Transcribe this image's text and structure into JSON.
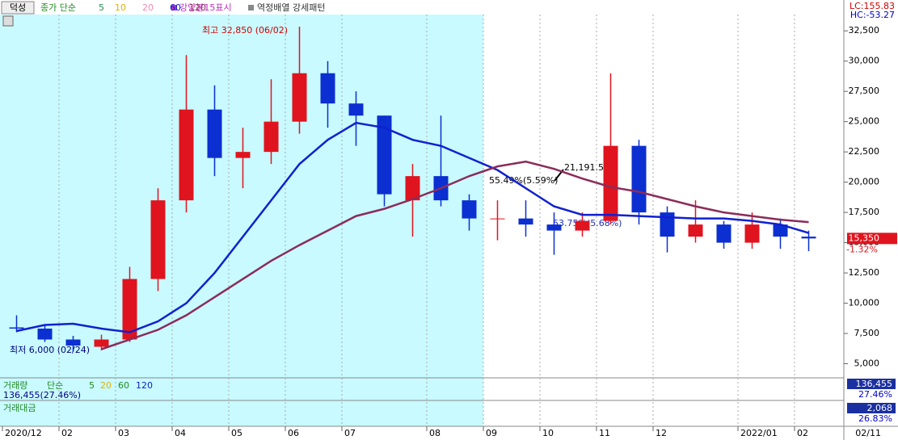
{
  "toolbar": {
    "stock": "덕성",
    "ma_prefix": "종가 단순",
    "ma_short": [
      {
        "label": "5",
        "color": "#2e8b57"
      },
      {
        "label": "10",
        "color": "#e0b000"
      },
      {
        "label": "20",
        "color": "#f08cb4"
      }
    ],
    "signal_1": "강양봉15표시",
    "signal_2": "역정배열 강세패턴",
    "lc": "LC:155.83",
    "hc": "HC:-53.27"
  },
  "chart_data": {
    "type": "candlestick",
    "categories": [
      "2020/12",
      null,
      "02",
      null,
      "03",
      null,
      "04",
      null,
      "05",
      null,
      "06",
      null,
      "07",
      null,
      null,
      "08",
      null,
      "09",
      null,
      "10",
      null,
      "11",
      null,
      "12",
      null,
      null,
      "2022/01",
      null,
      "02"
    ],
    "open": [
      8000,
      7900,
      7000,
      6400,
      7000,
      12000,
      18500,
      26000,
      22000,
      22500,
      25000,
      29000,
      26500,
      25500,
      18500,
      20500,
      18500,
      17000,
      17000,
      16500,
      16000,
      16800,
      23000,
      17500,
      15500,
      16500,
      15000,
      16500,
      15500
    ],
    "high": [
      9000,
      8200,
      7300,
      7400,
      13000,
      19500,
      30500,
      28000,
      24500,
      28500,
      32850,
      30000,
      27500,
      25500,
      21500,
      25500,
      19000,
      18500,
      18500,
      17500,
      17500,
      29000,
      23500,
      18000,
      18500,
      16800,
      17500,
      17000,
      16000
    ],
    "low": [
      7600,
      6800,
      6000,
      6100,
      6800,
      11000,
      17500,
      20500,
      19500,
      21500,
      24000,
      24500,
      23000,
      18000,
      15500,
      18000,
      16000,
      15200,
      15500,
      14000,
      15500,
      16500,
      16500,
      14200,
      15000,
      14500,
      14500,
      14500,
      14300
    ],
    "close": [
      7900,
      7000,
      6500,
      7000,
      12000,
      18500,
      26000,
      22000,
      22500,
      25000,
      29000,
      26500,
      25500,
      19000,
      20500,
      18500,
      17000,
      17000,
      16500,
      16000,
      16800,
      23000,
      17500,
      15500,
      16500,
      15000,
      16500,
      15500,
      15350
    ],
    "up_color": "#e0141e",
    "down_color": "#0b2fd0",
    "series": [
      {
        "name": "60",
        "color": "#1020d0",
        "values": [
          7700,
          8200,
          8300,
          7900,
          7600,
          8500,
          10000,
          12500,
          15500,
          18500,
          21500,
          23500,
          24900,
          24500,
          23500,
          23000,
          22000,
          21000,
          19500,
          18000,
          17300,
          17300,
          17200,
          17100,
          17000,
          17000,
          16800,
          16500,
          15800
        ]
      },
      {
        "name": "120",
        "color": "#8b2c5a",
        "values": [
          null,
          null,
          null,
          6200,
          7000,
          7800,
          9000,
          10500,
          12000,
          13500,
          14800,
          16000,
          17200,
          17800,
          18600,
          19500,
          20500,
          21300,
          21700,
          21100,
          20300,
          19600,
          19200,
          18600,
          18000,
          17500,
          17200,
          16900,
          16700
        ]
      }
    ],
    "ylim": [
      3900,
      33850
    ],
    "yticks": [
      {
        "value": 5000,
        "label": "5,000"
      },
      {
        "value": 7500,
        "label": "7,500"
      },
      {
        "value": 10000,
        "label": "10,000"
      },
      {
        "value": 12500,
        "label": "12,500"
      },
      {
        "value": 15000,
        "label": "15,000"
      },
      {
        "value": 17500,
        "label": "17,500"
      },
      {
        "value": 20000,
        "label": "20,000"
      },
      {
        "value": 22500,
        "label": "22,500"
      },
      {
        "value": 25000,
        "label": "25,000"
      },
      {
        "value": 27500,
        "label": "27,500"
      },
      {
        "value": 30000,
        "label": "30,000"
      },
      {
        "value": 32500,
        "label": "32,500"
      }
    ],
    "annotations": {
      "high": "최고 32,850 (06/02)",
      "low": "최저 6,000 (02/24)",
      "ret_1": "55.49%(5.59%)",
      "level": "21,191.50",
      "ret_2": "53.75%(5.68%)"
    },
    "last_price": {
      "value": 15350,
      "label": "15,350",
      "change": "-1.32%"
    },
    "end_date": "02/11"
  },
  "volume_panel": {
    "title": "거래량",
    "ma_prefix": "단순",
    "periods": [
      "5",
      "20",
      "60",
      "120"
    ],
    "summary": "136,455(27.46%)",
    "last": "136,455",
    "change": "27.46%"
  },
  "value_panel": {
    "title": "거래대금",
    "last": "2,068",
    "change": "26.83%"
  }
}
